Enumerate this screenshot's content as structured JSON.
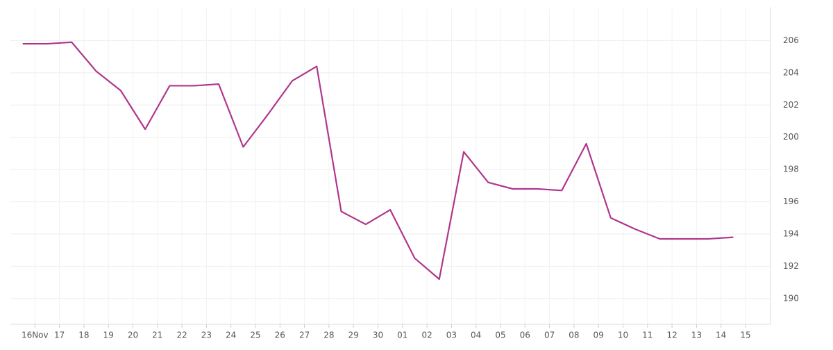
{
  "chart_data": {
    "type": "line",
    "categories": [
      "16Nov",
      "17",
      "18",
      "19",
      "20",
      "21",
      "22",
      "23",
      "24",
      "25",
      "26",
      "27",
      "28",
      "29",
      "30",
      "01",
      "02",
      "03",
      "04",
      "05",
      "06",
      "07",
      "08",
      "09",
      "10",
      "11",
      "12",
      "13",
      "14",
      "15"
    ],
    "series": [
      {
        "color": "#b0368c",
        "values": [
          205.8,
          205.8,
          205.9,
          204.1,
          202.9,
          200.5,
          203.2,
          203.2,
          203.3,
          199.4,
          201.4,
          203.5,
          204.4,
          195.4,
          194.6,
          195.5,
          192.5,
          191.2,
          199.1,
          197.2,
          196.8,
          196.8,
          196.7,
          199.6,
          195.0,
          194.3,
          193.7,
          193.7,
          193.7,
          193.8
        ]
      }
    ],
    "ylim": [
      188.4,
      208
    ],
    "yticks": [
      190,
      192,
      194,
      196,
      198,
      200,
      202,
      204,
      206
    ],
    "grid": true
  }
}
